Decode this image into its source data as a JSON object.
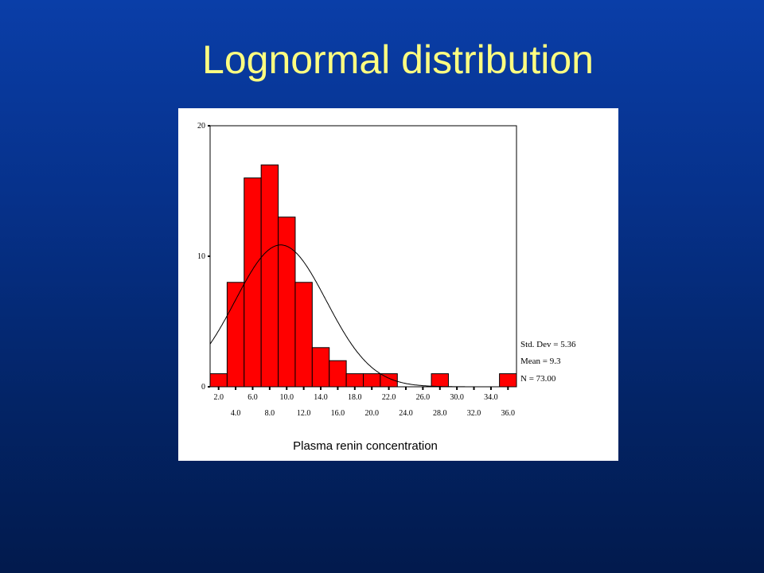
{
  "slide": {
    "title": "Lognormal distribution"
  },
  "chart_data": {
    "type": "bar",
    "title": "",
    "xlabel": "Plasma renin concentration",
    "ylabel": "",
    "ylim": [
      0,
      20
    ],
    "xlim": [
      1,
      37
    ],
    "bin_width": 2,
    "y_ticks": [
      0,
      10,
      20
    ],
    "x_tick_labels_upper": [
      "2.0",
      "6.0",
      "10.0",
      "14.0",
      "18.0",
      "22.0",
      "26.0",
      "30.0",
      "34.0"
    ],
    "x_tick_labels_lower": [
      "4.0",
      "8.0",
      "12.0",
      "16.0",
      "20.0",
      "24.0",
      "28.0",
      "32.0",
      "36.0"
    ],
    "categories": [
      "2.0",
      "4.0",
      "6.0",
      "8.0",
      "10.0",
      "12.0",
      "14.0",
      "16.0",
      "18.0",
      "20.0",
      "22.0",
      "24.0",
      "26.0",
      "28.0",
      "30.0",
      "32.0",
      "34.0",
      "36.0"
    ],
    "values": [
      1,
      8,
      16,
      17,
      13,
      8,
      3,
      2,
      1,
      1,
      1,
      0,
      0,
      1,
      0,
      0,
      0,
      1
    ],
    "normal_curve": {
      "mean": 9.3,
      "std_dev": 5.36,
      "n": 73
    },
    "bar_color": "#ff0000",
    "stats": {
      "std_dev": "Std. Dev = 5.36",
      "mean": "Mean = 9.3",
      "n": "N = 73.00"
    },
    "grid": false
  }
}
